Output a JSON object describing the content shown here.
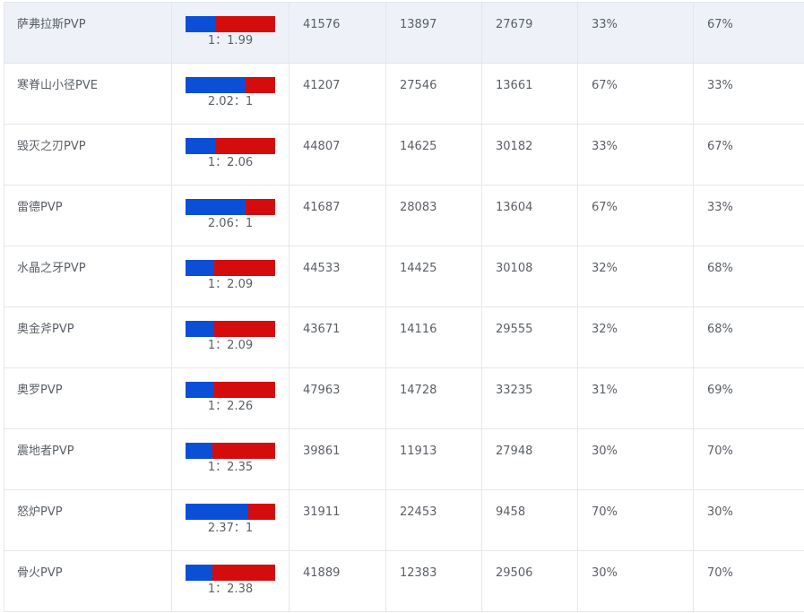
{
  "colors": {
    "blue": "#0a4fd6",
    "red": "#d40c0c",
    "highlight_row": "#eef1f8",
    "border": "#e4e6ea"
  },
  "rows": [
    {
      "name": "萨弗拉斯PVP",
      "ratio": "1：1.99",
      "blue_share": 0.33,
      "total": "41576",
      "blue_count": "13897",
      "red_count": "27679",
      "blue_pct": "33%",
      "red_pct": "67%",
      "highlighted": true
    },
    {
      "name": "寒脊山小径PVE",
      "ratio": "2.02：1",
      "blue_share": 0.67,
      "total": "41207",
      "blue_count": "27546",
      "red_count": "13661",
      "blue_pct": "67%",
      "red_pct": "33%"
    },
    {
      "name": "毁灭之刃PVP",
      "ratio": "1：2.06",
      "blue_share": 0.33,
      "total": "44807",
      "blue_count": "14625",
      "red_count": "30182",
      "blue_pct": "33%",
      "red_pct": "67%"
    },
    {
      "name": "雷德PVP",
      "ratio": "2.06：1",
      "blue_share": 0.67,
      "total": "41687",
      "blue_count": "28083",
      "red_count": "13604",
      "blue_pct": "67%",
      "red_pct": "33%"
    },
    {
      "name": "水晶之牙PVP",
      "ratio": "1：2.09",
      "blue_share": 0.32,
      "total": "44533",
      "blue_count": "14425",
      "red_count": "30108",
      "blue_pct": "32%",
      "red_pct": "68%"
    },
    {
      "name": "奥金斧PVP",
      "ratio": "1：2.09",
      "blue_share": 0.32,
      "total": "43671",
      "blue_count": "14116",
      "red_count": "29555",
      "blue_pct": "32%",
      "red_pct": "68%"
    },
    {
      "name": "奥罗PVP",
      "ratio": "1：2.26",
      "blue_share": 0.31,
      "total": "47963",
      "blue_count": "14728",
      "red_count": "33235",
      "blue_pct": "31%",
      "red_pct": "69%"
    },
    {
      "name": "震地者PVP",
      "ratio": "1：2.35",
      "blue_share": 0.3,
      "total": "39861",
      "blue_count": "11913",
      "red_count": "27948",
      "blue_pct": "30%",
      "red_pct": "70%"
    },
    {
      "name": "怒炉PVP",
      "ratio": "2.37：1",
      "blue_share": 0.7,
      "total": "31911",
      "blue_count": "22453",
      "red_count": "9458",
      "blue_pct": "70%",
      "red_pct": "30%"
    },
    {
      "name": "骨火PVP",
      "ratio": "1：2.38",
      "blue_share": 0.3,
      "total": "41889",
      "blue_count": "12383",
      "red_count": "29506",
      "blue_pct": "30%",
      "red_pct": "70%"
    }
  ]
}
